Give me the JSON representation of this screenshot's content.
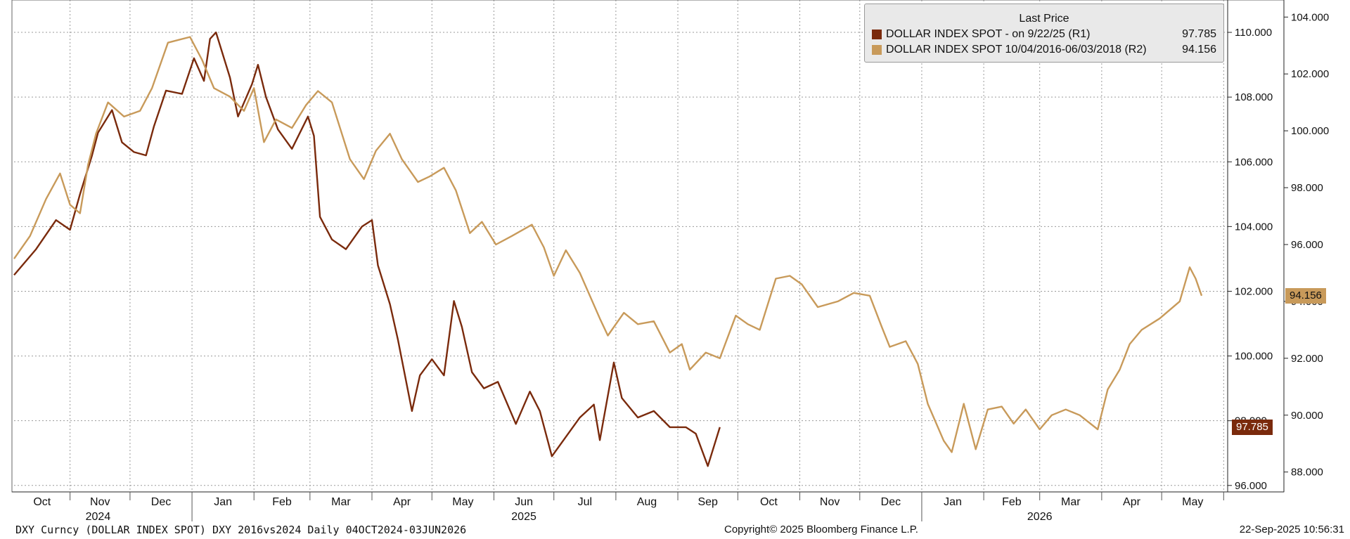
{
  "legend": {
    "header": "Last Price",
    "series1_label": "DOLLAR INDEX SPOT -  on 9/22/25  (R1)",
    "series1_value": "97.785",
    "series2_label": "DOLLAR INDEX SPOT 10/04/2016-06/03/2018  (R2)",
    "series2_value": "94.156"
  },
  "footer": {
    "left": "DXY Curncy (DOLLAR INDEX SPOT) DXY 2016vs2024  Daily 04OCT2024-03JUN2026",
    "center": "Copyright© 2025 Bloomberg Finance L.P.",
    "right": "22-Sep-2025 10:56:31"
  },
  "badges": {
    "r1": "97.785",
    "r2": "94.156"
  },
  "colors": {
    "series1": "#7a2a0c",
    "series2": "#c89a5a",
    "grid": "#9a9a9a"
  },
  "chart_data": {
    "type": "line",
    "x_range": [
      "2024-10-04",
      "2026-06-03"
    ],
    "x_month_labels": [
      "Oct",
      "Nov",
      "Dec",
      "Jan",
      "Feb",
      "Mar",
      "Apr",
      "May",
      "Jun",
      "Jul",
      "Aug",
      "Sep",
      "Oct",
      "Nov",
      "Dec",
      "Jan",
      "Feb",
      "Mar",
      "Apr",
      "May"
    ],
    "x_year_labels": [
      "2024",
      "2025",
      "2026"
    ],
    "axes": {
      "r1": {
        "ticks": [
          "96.000",
          "98.000",
          "100.000",
          "102.000",
          "104.000",
          "106.000",
          "108.000",
          "110.000"
        ],
        "range": [
          95.8,
          111.0
        ]
      },
      "r2": {
        "ticks": [
          "88.000",
          "90.000",
          "92.000",
          "94.000",
          "96.000",
          "98.000",
          "100.000",
          "102.000",
          "104.000"
        ],
        "range": [
          87.3,
          104.6
        ]
      }
    },
    "grid": true,
    "legend_position": "top-right",
    "series": [
      {
        "name": "DOLLAR INDEX SPOT -  on 9/22/25  (R1)",
        "axis": "r1",
        "points": [
          [
            "2024-10-04",
            102.5
          ],
          [
            "2024-10-15",
            103.3
          ],
          [
            "2024-10-25",
            104.2
          ],
          [
            "2024-11-01",
            103.9
          ],
          [
            "2024-11-06",
            105.0
          ],
          [
            "2024-11-12",
            106.2
          ],
          [
            "2024-11-15",
            106.9
          ],
          [
            "2024-11-22",
            107.6
          ],
          [
            "2024-11-27",
            106.6
          ],
          [
            "2024-12-03",
            106.3
          ],
          [
            "2024-12-09",
            106.2
          ],
          [
            "2024-12-13",
            107.1
          ],
          [
            "2024-12-19",
            108.2
          ],
          [
            "2024-12-27",
            108.1
          ],
          [
            "2025-01-02",
            109.2
          ],
          [
            "2025-01-07",
            108.5
          ],
          [
            "2025-01-10",
            109.8
          ],
          [
            "2025-01-13",
            110.0
          ],
          [
            "2025-01-20",
            108.6
          ],
          [
            "2025-01-24",
            107.4
          ],
          [
            "2025-01-31",
            108.4
          ],
          [
            "2025-02-03",
            109.0
          ],
          [
            "2025-02-07",
            108.0
          ],
          [
            "2025-02-13",
            107.0
          ],
          [
            "2025-02-20",
            106.4
          ],
          [
            "2025-02-28",
            107.4
          ],
          [
            "2025-03-03",
            106.8
          ],
          [
            "2025-03-06",
            104.3
          ],
          [
            "2025-03-12",
            103.6
          ],
          [
            "2025-03-19",
            103.3
          ],
          [
            "2025-03-27",
            104.0
          ],
          [
            "2025-04-01",
            104.2
          ],
          [
            "2025-04-04",
            102.8
          ],
          [
            "2025-04-10",
            101.6
          ],
          [
            "2025-04-14",
            100.5
          ],
          [
            "2025-04-21",
            98.3
          ],
          [
            "2025-04-25",
            99.4
          ],
          [
            "2025-05-01",
            99.9
          ],
          [
            "2025-05-07",
            99.4
          ],
          [
            "2025-05-12",
            101.7
          ],
          [
            "2025-05-16",
            100.9
          ],
          [
            "2025-05-21",
            99.5
          ],
          [
            "2025-05-27",
            99.0
          ],
          [
            "2025-06-03",
            99.2
          ],
          [
            "2025-06-12",
            97.9
          ],
          [
            "2025-06-19",
            98.9
          ],
          [
            "2025-06-24",
            98.3
          ],
          [
            "2025-06-30",
            96.9
          ],
          [
            "2025-07-07",
            97.5
          ],
          [
            "2025-07-14",
            98.1
          ],
          [
            "2025-07-21",
            98.5
          ],
          [
            "2025-07-24",
            97.4
          ],
          [
            "2025-07-31",
            99.8
          ],
          [
            "2025-08-04",
            98.7
          ],
          [
            "2025-08-12",
            98.1
          ],
          [
            "2025-08-20",
            98.3
          ],
          [
            "2025-08-28",
            97.8
          ],
          [
            "2025-09-05",
            97.8
          ],
          [
            "2025-09-10",
            97.6
          ],
          [
            "2025-09-16",
            96.6
          ],
          [
            "2025-09-22",
            97.8
          ]
        ]
      },
      {
        "name": "DOLLAR INDEX SPOT 10/04/2016-06/03/2018  (R2)",
        "axis": "r2",
        "points": [
          [
            "2024-10-04",
            95.5
          ],
          [
            "2024-10-12",
            96.3
          ],
          [
            "2024-10-20",
            97.6
          ],
          [
            "2024-10-27",
            98.5
          ],
          [
            "2024-11-01",
            97.4
          ],
          [
            "2024-11-06",
            97.1
          ],
          [
            "2024-11-10",
            98.8
          ],
          [
            "2024-11-14",
            99.9
          ],
          [
            "2024-11-20",
            101.0
          ],
          [
            "2024-11-28",
            100.5
          ],
          [
            "2024-12-06",
            100.7
          ],
          [
            "2024-12-12",
            101.5
          ],
          [
            "2024-12-20",
            103.1
          ],
          [
            "2024-12-31",
            103.3
          ],
          [
            "2025-01-06",
            102.5
          ],
          [
            "2025-01-12",
            101.5
          ],
          [
            "2025-01-20",
            101.2
          ],
          [
            "2025-01-27",
            100.7
          ],
          [
            "2025-02-01",
            101.5
          ],
          [
            "2025-02-06",
            99.6
          ],
          [
            "2025-02-12",
            100.4
          ],
          [
            "2025-02-20",
            100.1
          ],
          [
            "2025-02-27",
            100.9
          ],
          [
            "2025-03-05",
            101.4
          ],
          [
            "2025-03-12",
            101.0
          ],
          [
            "2025-03-21",
            99.0
          ],
          [
            "2025-03-28",
            98.3
          ],
          [
            "2025-04-03",
            99.3
          ],
          [
            "2025-04-10",
            99.9
          ],
          [
            "2025-04-16",
            99.0
          ],
          [
            "2025-04-24",
            98.2
          ],
          [
            "2025-04-30",
            98.4
          ],
          [
            "2025-05-07",
            98.7
          ],
          [
            "2025-05-13",
            97.9
          ],
          [
            "2025-05-20",
            96.4
          ],
          [
            "2025-05-26",
            96.8
          ],
          [
            "2025-06-02",
            96.0
          ],
          [
            "2025-06-10",
            96.3
          ],
          [
            "2025-06-20",
            96.7
          ],
          [
            "2025-06-26",
            95.9
          ],
          [
            "2025-07-01",
            94.9
          ],
          [
            "2025-07-07",
            95.8
          ],
          [
            "2025-07-14",
            95.0
          ],
          [
            "2025-07-24",
            93.4
          ],
          [
            "2025-07-28",
            92.8
          ],
          [
            "2025-08-05",
            93.6
          ],
          [
            "2025-08-12",
            93.2
          ],
          [
            "2025-08-20",
            93.3
          ],
          [
            "2025-08-28",
            92.2
          ],
          [
            "2025-09-03",
            92.5
          ],
          [
            "2025-09-07",
            91.6
          ],
          [
            "2025-09-15",
            92.2
          ],
          [
            "2025-09-22",
            92.0
          ],
          [
            "2025-09-30",
            93.5
          ],
          [
            "2025-10-06",
            93.2
          ],
          [
            "2025-10-12",
            93.0
          ],
          [
            "2025-10-20",
            94.8
          ],
          [
            "2025-10-27",
            94.9
          ],
          [
            "2025-11-02",
            94.6
          ],
          [
            "2025-11-10",
            93.8
          ],
          [
            "2025-11-20",
            94.0
          ],
          [
            "2025-11-28",
            94.3
          ],
          [
            "2025-12-06",
            94.2
          ],
          [
            "2025-12-12",
            93.1
          ],
          [
            "2025-12-16",
            92.4
          ],
          [
            "2025-12-24",
            92.6
          ],
          [
            "2025-12-30",
            91.8
          ],
          [
            "2026-01-04",
            90.4
          ],
          [
            "2026-01-12",
            89.1
          ],
          [
            "2026-01-16",
            88.7
          ],
          [
            "2026-01-22",
            90.4
          ],
          [
            "2026-01-28",
            88.8
          ],
          [
            "2026-02-03",
            90.2
          ],
          [
            "2026-02-10",
            90.3
          ],
          [
            "2026-02-16",
            89.7
          ],
          [
            "2026-02-22",
            90.2
          ],
          [
            "2026-03-01",
            89.5
          ],
          [
            "2026-03-07",
            90.0
          ],
          [
            "2026-03-14",
            90.2
          ],
          [
            "2026-03-21",
            90.0
          ],
          [
            "2026-03-30",
            89.5
          ],
          [
            "2026-04-04",
            90.9
          ],
          [
            "2026-04-10",
            91.6
          ],
          [
            "2026-04-15",
            92.5
          ],
          [
            "2026-04-21",
            93.0
          ],
          [
            "2026-04-30",
            93.4
          ],
          [
            "2026-05-10",
            94.0
          ],
          [
            "2026-05-15",
            95.2
          ],
          [
            "2026-05-18",
            94.8
          ],
          [
            "2026-05-21",
            94.2
          ]
        ]
      }
    ]
  }
}
